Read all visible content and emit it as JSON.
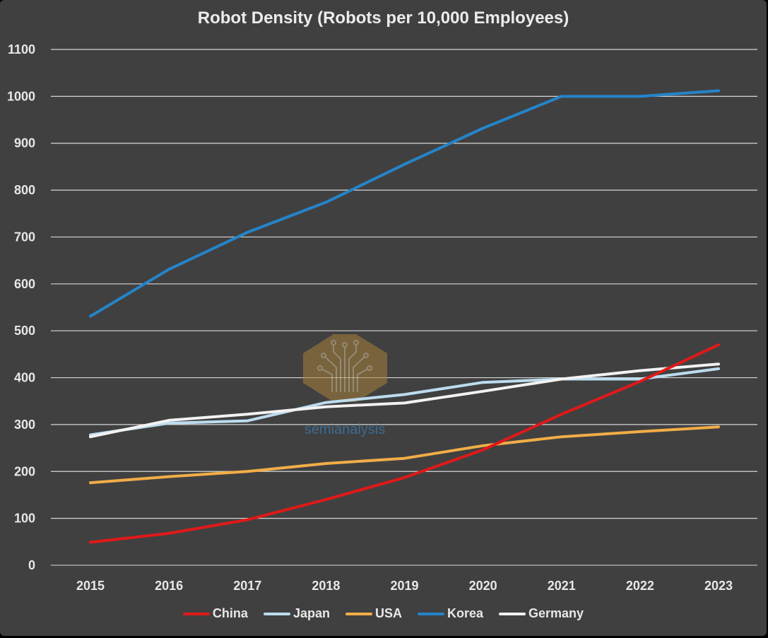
{
  "chart_data": {
    "type": "line",
    "title": "Robot Density (Robots per 10,000 Employees)",
    "xlabel": "",
    "ylabel": "",
    "categories": [
      "2015",
      "2016",
      "2017",
      "2018",
      "2019",
      "2020",
      "2021",
      "2022",
      "2023"
    ],
    "y_ticks": [
      "0",
      "100",
      "200",
      "300",
      "400",
      "500",
      "600",
      "700",
      "800",
      "900",
      "1000",
      "1100"
    ],
    "ylim": [
      0,
      1100
    ],
    "grid": "horizontal",
    "legend_position": "bottom",
    "series": [
      {
        "name": "China",
        "color": "#e01919",
        "values": [
          49,
          68,
          97,
          140,
          187,
          246,
          322,
          392,
          470
        ]
      },
      {
        "name": "Japan",
        "color": "#bcdcee",
        "values": [
          278,
          303,
          308,
          347,
          364,
          390,
          397,
          397,
          419
        ]
      },
      {
        "name": "USA",
        "color": "#f2ad47",
        "values": [
          176,
          189,
          200,
          217,
          228,
          255,
          274,
          285,
          295
        ]
      },
      {
        "name": "Korea",
        "color": "#2584c8",
        "values": [
          531,
          631,
          710,
          774,
          855,
          932,
          1000,
          1000,
          1012
        ]
      },
      {
        "name": "Germany",
        "color": "#f2f2f2",
        "values": [
          274,
          309,
          322,
          338,
          346,
          371,
          397,
          415,
          429
        ]
      }
    ]
  },
  "watermark": {
    "text": "semianalysis",
    "icon": "tree-circuit-logo"
  }
}
